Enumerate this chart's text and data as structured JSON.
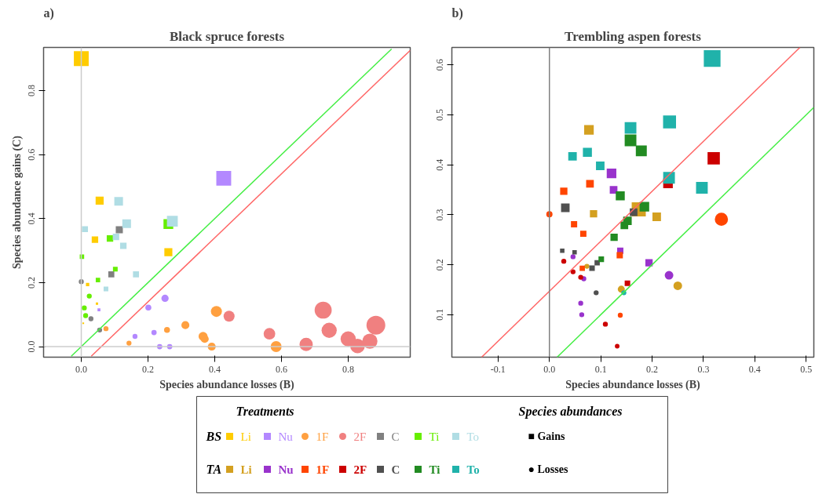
{
  "chart_data": [
    {
      "type": "bubble",
      "title": "Black spruce forests",
      "annotations": [
        "a)"
      ],
      "xlabel": "Species abundance losses (B)",
      "ylabel": "Species abundance gains (C)",
      "legend_title": "BS",
      "legend": "bottom",
      "grid": false,
      "xlim": [
        -0.113,
        0.986
      ],
      "ylim": [
        -0.033,
        0.935
      ],
      "xticks": [
        {
          "value": 0,
          "label": "0.0"
        },
        0.2,
        0.4,
        0.6,
        0.8
      ],
      "yticks": [
        {
          "value": 0,
          "label": "0.0"
        },
        0.2,
        0.4,
        0.6,
        0.8
      ],
      "ref_lines": [
        {
          "axis": "x",
          "value": 0,
          "color": "#cccccc"
        },
        {
          "axis": "y",
          "value": 0,
          "color": "#cccccc"
        }
      ],
      "series": [
        {
          "name": "Li",
          "color": "#ffcc00",
          "marker": "square",
          "x": [
            0.0,
            0.055,
            0.041,
            0.261,
            0.019,
            0.047,
            0.006
          ],
          "values": [
            0.9,
            0.456,
            0.334,
            0.295,
            0.194,
            0.134,
            0.073
          ],
          "sizes": [
            0.79,
            0.23,
            0.15,
            0.23,
            0.04,
            0.02,
            0.01
          ]
        },
        {
          "name": "Nu",
          "color": "#b388ff",
          "marker": "square",
          "x": [
            0.427,
            0.053
          ],
          "values": [
            0.526,
            0.115
          ],
          "sizes": [
            0.79,
            0.03
          ]
        },
        {
          "color": "#b388ff",
          "marker": "circle",
          "x": [
            0.251,
            0.201,
            0.218,
            0.161,
            0.235,
            0.265
          ],
          "values": [
            0.151,
            0.122,
            0.044,
            0.032,
            0.0,
            0.0
          ],
          "sizes": [
            0.15,
            0.1,
            0.08,
            0.07,
            0.08,
            0.08
          ]
        },
        {
          "name": "1F",
          "color": "#ffa040",
          "marker": "circle",
          "x": [
            0.405,
            0.312,
            0.257,
            0.365,
            0.37,
            0.391,
            0.584,
            0.143,
            0.074
          ],
          "values": [
            0.11,
            0.067,
            0.052,
            0.032,
            0.024,
            0.0,
            0.0,
            0.011,
            0.056
          ],
          "sizes": [
            0.34,
            0.18,
            0.1,
            0.23,
            0.18,
            0.18,
            0.34,
            0.07,
            0.07
          ]
        },
        {
          "name": "2F",
          "color": "#f08080",
          "marker": "circle",
          "x": [
            0.725,
            0.743,
            0.8,
            0.828,
            0.865,
            0.883,
            0.564,
            0.674,
            0.443
          ],
          "values": [
            0.114,
            0.051,
            0.024,
            0.002,
            0.017,
            0.067,
            0.04,
            0.007,
            0.095
          ],
          "sizes": [
            0.82,
            0.65,
            0.65,
            0.6,
            0.65,
            1.0,
            0.38,
            0.5,
            0.34
          ]
        },
        {
          "name": "C",
          "color": "#808080",
          "marker": "square",
          "x": [
            0.114,
            0.09
          ],
          "values": [
            0.365,
            0.226
          ],
          "sizes": [
            0.18,
            0.13
          ]
        },
        {
          "color": "#808080",
          "marker": "circle",
          "x": [
            0.0,
            0.029,
            0.055
          ],
          "values": [
            0.203,
            0.087,
            0.052
          ],
          "sizes": [
            0.07,
            0.07,
            0.07
          ]
        },
        {
          "name": "Ti",
          "color": "#66ee00",
          "marker": "square",
          "x": [
            0.261,
            0.086,
            0.102,
            0.05,
            0.002
          ],
          "values": [
            0.383,
            0.338,
            0.242,
            0.208,
            0.281
          ],
          "sizes": [
            0.34,
            0.15,
            0.08,
            0.07,
            0.07
          ]
        },
        {
          "color": "#66ee00",
          "marker": "circle",
          "x": [
            0.024,
            0.009,
            0.013
          ],
          "values": [
            0.158,
            0.121,
            0.097
          ],
          "sizes": [
            0.07,
            0.07,
            0.07
          ]
        },
        {
          "name": "To",
          "color": "#b0dde4",
          "marker": "square",
          "x": [
            0.273,
            0.112,
            0.136,
            0.104,
            0.126,
            0.011,
            0.164,
            0.074
          ],
          "values": [
            0.392,
            0.454,
            0.384,
            0.343,
            0.315,
            0.367,
            0.226,
            0.18
          ],
          "sizes": [
            0.42,
            0.27,
            0.27,
            0.15,
            0.15,
            0.13,
            0.13,
            0.08
          ]
        },
        {
          "type": "line",
          "color": "#44ee44",
          "x": [
            -0.03,
            0.93
          ],
          "values": [
            -0.03,
            0.93
          ]
        },
        {
          "type": "line",
          "color": "#ff6666",
          "x": [
            0.03,
            0.986
          ],
          "values": [
            -0.03,
            0.926
          ]
        }
      ]
    },
    {
      "type": "bubble",
      "title": "Trembling aspen forests",
      "annotations": [
        "b)"
      ],
      "xlabel": "Species abundance losses (B)",
      "legend_title": "TA",
      "legend": "bottom",
      "grid": false,
      "xlim": [
        -0.19,
        0.515
      ],
      "ylim": [
        0.015,
        0.635
      ],
      "xticks": [
        -0.1,
        {
          "value": 0,
          "label": "0.0"
        },
        0.1,
        0.2,
        0.3,
        0.4,
        0.5
      ],
      "yticks": [
        0.1,
        0.2,
        0.3,
        0.4,
        0.5,
        0.6
      ],
      "ref_lines": [
        {
          "axis": "x",
          "value": 0,
          "color": "#808080"
        }
      ],
      "series": [
        {
          "name": "Li",
          "color": "#d4a020",
          "marker": "square",
          "x": [
            0.077,
            0.174,
            0.086,
            0.209
          ],
          "values": [
            0.47,
            0.311,
            0.302,
            0.296
          ],
          "sizes": [
            0.33,
            0.71,
            0.19,
            0.26
          ]
        },
        {
          "color": "#d4a020",
          "marker": "circle",
          "x": [
            0.25,
            0.14,
            0.073
          ],
          "values": [
            0.158,
            0.151,
            0.197
          ],
          "sizes": [
            0.21,
            0.14,
            0.07
          ]
        },
        {
          "name": "Nu",
          "color": "#9933cc",
          "marker": "square",
          "x": [
            0.121,
            0.125,
            0.138,
            0.194
          ],
          "values": [
            0.383,
            0.35,
            0.228,
            0.204
          ],
          "sizes": [
            0.33,
            0.21,
            0.14,
            0.19
          ]
        },
        {
          "color": "#9933cc",
          "marker": "circle",
          "x": [
            0.233,
            0.046,
            0.067,
            0.061,
            0.063
          ],
          "values": [
            0.179,
            0.216,
            0.172,
            0.123,
            0.1
          ],
          "sizes": [
            0.21,
            0.07,
            0.07,
            0.07,
            0.07
          ]
        },
        {
          "name": "1F",
          "color": "#ff4500",
          "marker": "square",
          "x": [
            0.079,
            0.028,
            0.048,
            0.066,
            0.137,
            0.064
          ],
          "values": [
            0.362,
            0.347,
            0.281,
            0.262,
            0.219,
            0.193
          ],
          "sizes": [
            0.21,
            0.19,
            0.14,
            0.14,
            0.14,
            0.1
          ]
        },
        {
          "color": "#ff4500",
          "marker": "circle",
          "x": [
            0.335,
            0.0,
            0.138
          ],
          "values": [
            0.291,
            0.301,
            0.099
          ],
          "sizes": [
            0.49,
            0.11,
            0.07
          ]
        },
        {
          "name": "2F",
          "color": "#cc0000",
          "marker": "square",
          "x": [
            0.32,
            0.231,
            0.152
          ],
          "values": [
            0.413,
            0.363,
            0.163
          ],
          "sizes": [
            0.54,
            0.33,
            0.11
          ]
        },
        {
          "color": "#cc0000",
          "marker": "circle",
          "x": [
            0.028,
            0.046,
            0.061,
            0.109,
            0.132
          ],
          "values": [
            0.207,
            0.186,
            0.175,
            0.081,
            0.037
          ],
          "sizes": [
            0.07,
            0.07,
            0.07,
            0.07,
            0.06
          ]
        },
        {
          "name": "C",
          "color": "#505050",
          "marker": "square",
          "x": [
            0.031,
            0.164,
            0.083,
            0.093,
            0.049,
            0.025
          ],
          "values": [
            0.314,
            0.305,
            0.193,
            0.204,
            0.225,
            0.228
          ],
          "sizes": [
            0.26,
            0.21,
            0.11,
            0.1,
            0.07,
            0.07
          ]
        },
        {
          "color": "#505050",
          "marker": "circle",
          "x": [
            0.091
          ],
          "values": [
            0.144
          ],
          "sizes": [
            0.07
          ]
        },
        {
          "name": "Ti",
          "color": "#228b22",
          "marker": "square",
          "x": [
            0.158,
            0.179,
            0.138,
            0.185,
            0.152,
            0.146,
            0.126,
            0.101
          ],
          "values": [
            0.449,
            0.428,
            0.338,
            0.316,
            0.288,
            0.279,
            0.255,
            0.211
          ],
          "sizes": [
            0.49,
            0.43,
            0.29,
            0.33,
            0.26,
            0.21,
            0.19,
            0.11
          ]
        },
        {
          "name": "To",
          "color": "#20b2aa",
          "marker": "square",
          "x": [
            0.317,
            0.234,
            0.158,
            0.074,
            0.045,
            0.099,
            0.233,
            0.297
          ],
          "values": [
            0.613,
            0.486,
            0.474,
            0.425,
            0.417,
            0.398,
            0.374,
            0.354
          ],
          "sizes": [
            1.0,
            0.6,
            0.49,
            0.29,
            0.26,
            0.26,
            0.49,
            0.49
          ]
        },
        {
          "color": "#20b2aa",
          "marker": "circle",
          "x": [
            0.145
          ],
          "values": [
            0.144
          ],
          "sizes": [
            0.07
          ]
        },
        {
          "type": "line",
          "color": "#ff6666",
          "x": [
            -0.132,
            0.488
          ],
          "values": [
            0.015,
            0.635
          ]
        },
        {
          "type": "line",
          "color": "#44ee44",
          "x": [
            0.015,
            0.515
          ],
          "values": [
            0.015,
            0.515
          ]
        }
      ]
    },
    {
      "type": "other",
      "title": "Treatments",
      "annotations": [
        "Species abundances",
        "■ Gains",
        "● Losses"
      ]
    }
  ]
}
